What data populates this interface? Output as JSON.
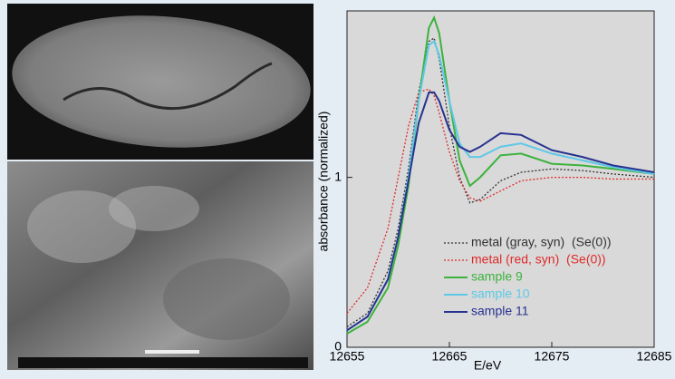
{
  "chart_data": {
    "type": "line",
    "x_label": "E/eV",
    "y_label": "absorbance (normalized)",
    "x": [
      12655,
      12657,
      12659,
      12660,
      12661,
      12662,
      12663,
      12663.5,
      12664,
      12665,
      12666,
      12667,
      12668,
      12670,
      12672,
      12675,
      12678,
      12681,
      12685
    ],
    "series": [
      {
        "name": "metal (gray, syn)  (Se(0))",
        "color": "#333333",
        "dash": "dotted",
        "values": [
          0.12,
          0.2,
          0.45,
          0.7,
          1.05,
          1.5,
          1.8,
          1.82,
          1.7,
          1.3,
          1.0,
          0.85,
          0.87,
          0.98,
          1.03,
          1.05,
          1.04,
          1.02,
          1.0
        ]
      },
      {
        "name": "metal (red, syn)  (Se(0))",
        "color": "#e02a2a",
        "dash": "dotted",
        "values": [
          0.2,
          0.35,
          0.7,
          1.0,
          1.3,
          1.5,
          1.52,
          1.48,
          1.38,
          1.15,
          0.98,
          0.88,
          0.86,
          0.92,
          0.98,
          1.0,
          1.0,
          0.99,
          0.99
        ]
      },
      {
        "name": "sample 9",
        "color": "#3db23d",
        "dash": "solid",
        "values": [
          0.08,
          0.15,
          0.35,
          0.6,
          0.95,
          1.45,
          1.88,
          1.94,
          1.85,
          1.45,
          1.1,
          0.95,
          1.0,
          1.13,
          1.14,
          1.08,
          1.07,
          1.05,
          1.02
        ]
      },
      {
        "name": "sample 10",
        "color": "#5ec8e6",
        "dash": "solid",
        "values": [
          0.1,
          0.18,
          0.4,
          0.65,
          1.0,
          1.45,
          1.78,
          1.8,
          1.72,
          1.45,
          1.2,
          1.12,
          1.12,
          1.18,
          1.2,
          1.14,
          1.1,
          1.06,
          1.02
        ]
      },
      {
        "name": "sample 11",
        "color": "#27318f",
        "dash": "solid",
        "values": [
          0.1,
          0.18,
          0.4,
          0.65,
          0.98,
          1.32,
          1.5,
          1.5,
          1.45,
          1.28,
          1.18,
          1.15,
          1.18,
          1.26,
          1.25,
          1.16,
          1.12,
          1.07,
          1.03
        ]
      }
    ],
    "xlim": [
      12655,
      12685
    ],
    "xticks": [
      12655,
      12665,
      12675,
      12685
    ],
    "ylim": [
      0,
      1.98
    ],
    "yticks": [
      0,
      1
    ],
    "legend_position": "lower right",
    "background": "#d9d9d9"
  }
}
